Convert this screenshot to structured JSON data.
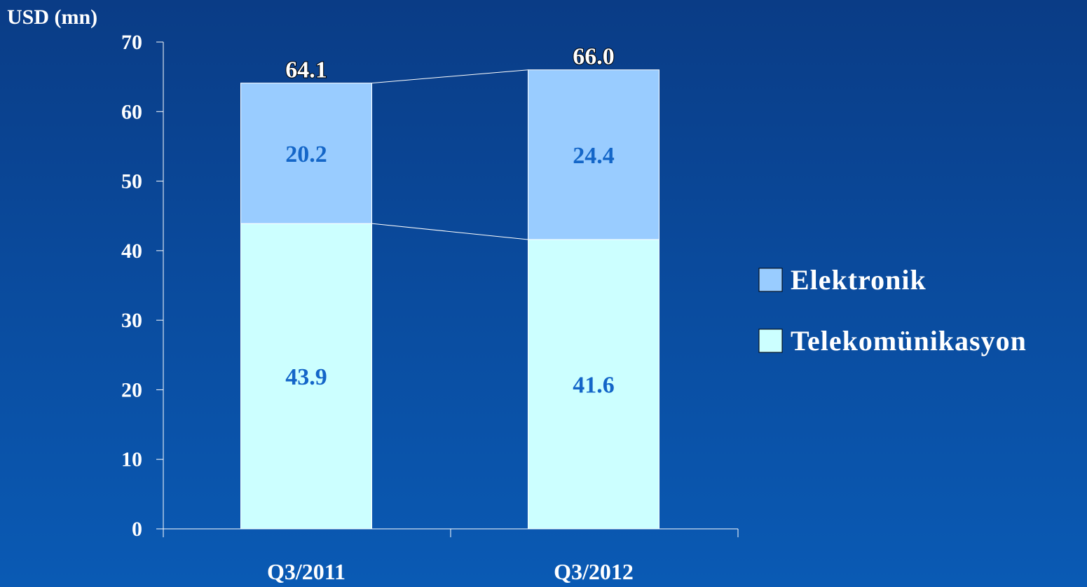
{
  "chart_data": {
    "type": "bar",
    "stacked": true,
    "ylabel": "USD (mn)",
    "ylim": [
      0,
      70
    ],
    "yticks": [
      "0",
      "10",
      "20",
      "30",
      "40",
      "50",
      "60",
      "70"
    ],
    "categories": [
      "Q3/2011",
      "Q3/2012"
    ],
    "series": [
      {
        "name": "Telekomünikasyon",
        "values": [
          43.9,
          41.6
        ],
        "labels": [
          "43.9",
          "41.6"
        ],
        "color": "#ccffff"
      },
      {
        "name": "Elektronik",
        "values": [
          20.2,
          24.4
        ],
        "labels": [
          "20.2",
          "24.4"
        ],
        "color": "#99ccff"
      }
    ],
    "totals": [
      "64.1",
      "66.0"
    ],
    "legend_position": "right",
    "grid": false
  }
}
